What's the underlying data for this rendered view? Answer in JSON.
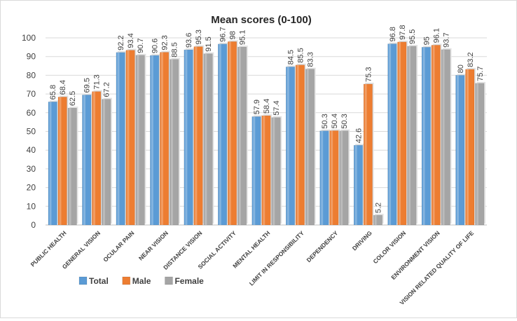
{
  "chart_data": {
    "type": "bar",
    "title": "Mean scores (0-100)",
    "xlabel": "",
    "ylabel": "",
    "ylim": [
      0,
      100
    ],
    "yticks": [
      0,
      10,
      20,
      30,
      40,
      50,
      60,
      70,
      80,
      90,
      100
    ],
    "grid": true,
    "legend_position": "bottom-left",
    "categories": [
      "PUBLIC HEALTH",
      "GENERAL VISION",
      "OCULAR PAIN",
      "NEAR VISION",
      "DISTANCE VISION",
      "SOCIAL ACTIVITY",
      "MENTAL HEALTH",
      "LIMIT IN RESPONSIBILITY",
      "DEPENDENCY",
      "DRIVING",
      "COLOR VISION",
      "ENVIRONMENT VISION",
      "VISION RELATED QUALITY OF LIFE"
    ],
    "series": [
      {
        "name": "Total",
        "color": "#5b9bd5",
        "values": [
          65.8,
          69.5,
          92.2,
          90.6,
          93.6,
          96.7,
          57.9,
          84.5,
          50.3,
          42.6,
          96.8,
          95,
          80
        ],
        "labels": [
          "65.8",
          "69.5",
          "92.2",
          "90.6",
          "93.6",
          "96.7",
          "57.9",
          "84.5",
          "50.3",
          "42.6",
          "96.8",
          "95",
          "80"
        ]
      },
      {
        "name": "Male",
        "color": "#ed7d31",
        "values": [
          68.4,
          71.3,
          93.4,
          92.3,
          95.3,
          98,
          58.4,
          85.5,
          50.4,
          75.3,
          97.8,
          96.1,
          83.2
        ],
        "labels": [
          "68.4",
          "71.3",
          "93.4",
          "92.3",
          "95.3",
          "98",
          "58.4",
          "85.5",
          "50.4",
          "75.3",
          "97.8",
          "96.1",
          "83.2"
        ]
      },
      {
        "name": "Female",
        "color": "#a5a5a5",
        "values": [
          62.5,
          67.2,
          90.7,
          88.5,
          91.5,
          95.1,
          57.4,
          83.3,
          50.3,
          5.2,
          95.5,
          93.7,
          75.7
        ],
        "labels": [
          "62.5",
          "67.2",
          "90.7",
          "88.5",
          "91.5",
          "95.1",
          "57.4",
          "83.3",
          "50.3",
          "5.2",
          "95.5",
          "93.7",
          "75.7"
        ]
      }
    ]
  }
}
